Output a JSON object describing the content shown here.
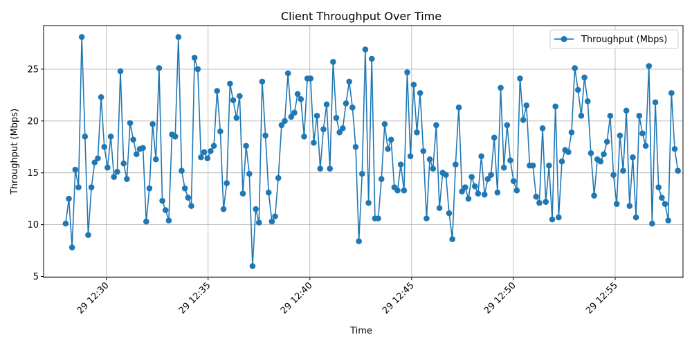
{
  "chart_data": {
    "type": "line",
    "title": "Client Throughput Over Time",
    "xlabel": "Time",
    "ylabel": "Throughput (Mbps)",
    "x_start": "2024-01-29T12:28:00",
    "x_step_seconds": 9.5,
    "x_ticks": [
      {
        "label": "29 12:30",
        "time": "2024-01-29T12:30:00"
      },
      {
        "label": "29 12:35",
        "time": "2024-01-29T12:35:00"
      },
      {
        "label": "29 12:40",
        "time": "2024-01-29T12:40:00"
      },
      {
        "label": "29 12:45",
        "time": "2024-01-29T12:45:00"
      },
      {
        "label": "29 12:50",
        "time": "2024-01-29T12:50:00"
      },
      {
        "label": "29 12:55",
        "time": "2024-01-29T12:55:00"
      }
    ],
    "xlim": [
      "2024-01-29T12:26:55",
      "2024-01-29T12:58:20"
    ],
    "y_ticks": [
      5,
      10,
      15,
      20,
      25
    ],
    "ylim": [
      4.9,
      29.2
    ],
    "grid": true,
    "legend_position": "top-right",
    "series": [
      {
        "name": "Throughput (Mbps)",
        "color": "#1f77b4",
        "marker": "circle",
        "values": [
          10.1,
          12.5,
          7.8,
          15.3,
          13.6,
          28.1,
          18.5,
          9.0,
          13.6,
          16.0,
          16.4,
          22.3,
          17.5,
          15.5,
          18.5,
          14.6,
          15.1,
          24.8,
          15.9,
          14.4,
          19.8,
          18.2,
          16.8,
          17.3,
          17.4,
          10.3,
          13.5,
          19.7,
          16.3,
          25.1,
          12.3,
          11.4,
          10.4,
          18.7,
          18.5,
          28.1,
          15.2,
          13.5,
          12.6,
          11.8,
          26.1,
          25.0,
          16.5,
          17.0,
          16.4,
          17.1,
          17.6,
          22.9,
          19.0,
          11.5,
          14.0,
          23.6,
          22.0,
          20.3,
          22.4,
          13.0,
          17.6,
          14.9,
          6.0,
          11.5,
          10.2,
          23.8,
          18.6,
          13.1,
          10.3,
          10.8,
          14.5,
          19.6,
          20.0,
          24.6,
          20.4,
          20.8,
          22.6,
          22.1,
          18.5,
          24.1,
          24.1,
          17.9,
          20.5,
          15.4,
          19.2,
          21.6,
          15.4,
          25.7,
          20.3,
          18.9,
          19.3,
          21.7,
          23.8,
          21.3,
          17.5,
          8.4,
          14.9,
          26.9,
          12.1,
          26.0,
          10.6,
          10.6,
          14.4,
          19.7,
          17.3,
          18.2,
          13.6,
          13.3,
          15.8,
          13.3,
          24.7,
          16.6,
          23.5,
          18.9,
          22.7,
          17.1,
          10.6,
          16.3,
          15.4,
          19.6,
          11.6,
          15.0,
          14.8,
          11.1,
          8.6,
          15.8,
          21.3,
          13.2,
          13.6,
          12.5,
          14.6,
          13.7,
          13.0,
          16.6,
          12.9,
          14.4,
          14.8,
          18.4,
          13.1,
          23.2,
          15.5,
          19.6,
          16.2,
          14.2,
          13.3,
          24.1,
          20.1,
          21.5,
          15.7,
          15.7,
          12.7,
          12.1,
          19.3,
          12.2,
          15.7,
          10.5,
          21.4,
          10.7,
          16.1,
          17.2,
          17.0,
          18.9,
          25.1,
          23.0,
          20.5,
          24.2,
          21.9,
          16.9,
          12.8,
          16.3,
          16.1,
          16.8,
          18.0,
          20.5,
          14.8,
          12.0,
          18.6,
          15.2,
          21.0,
          11.8,
          16.5,
          10.7,
          20.5,
          18.8,
          17.6,
          25.3,
          10.1,
          21.8,
          13.6,
          12.6,
          12.0,
          10.4,
          22.7,
          17.3,
          15.2
        ]
      }
    ]
  }
}
